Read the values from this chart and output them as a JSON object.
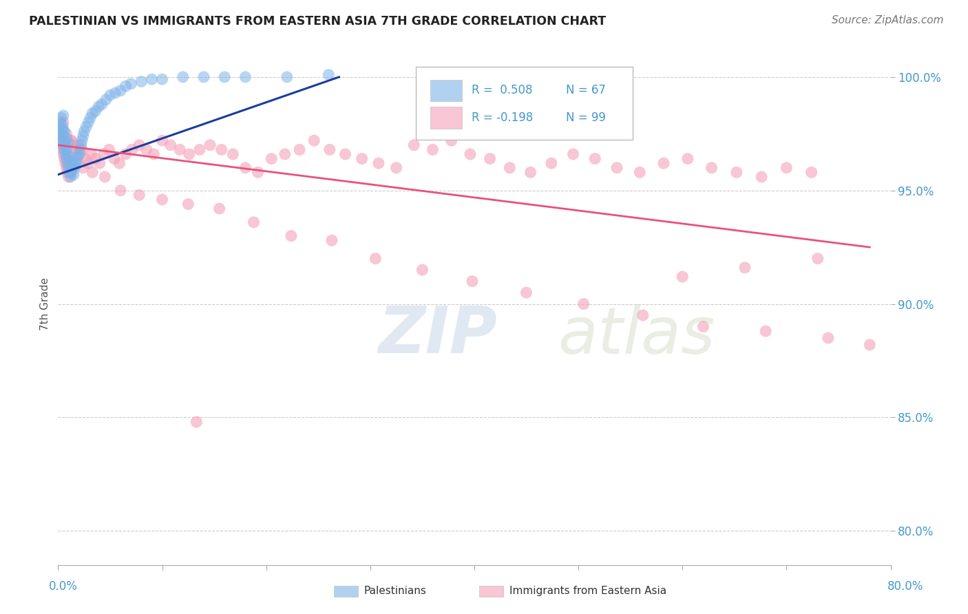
{
  "title": "PALESTINIAN VS IMMIGRANTS FROM EASTERN ASIA 7TH GRADE CORRELATION CHART",
  "source": "Source: ZipAtlas.com",
  "ylabel": "7th Grade",
  "y_tick_labels": [
    "80.0%",
    "85.0%",
    "90.0%",
    "95.0%",
    "100.0%"
  ],
  "y_tick_values": [
    0.8,
    0.85,
    0.9,
    0.95,
    1.0
  ],
  "xmin": 0.0,
  "xmax": 0.8,
  "ymin": 0.785,
  "ymax": 1.015,
  "legend_r_blue": "R = 0.508",
  "legend_n_blue": "N = 67",
  "legend_r_pink": "R = -0.198",
  "legend_n_pink": "N = 99",
  "blue_color": "#7EB3E8",
  "pink_color": "#F4A0B8",
  "blue_line_color": "#1A3D9E",
  "pink_line_color": "#E8527A",
  "watermark_zip": "ZIP",
  "watermark_atlas": "atlas",
  "blue_x": [
    0.001,
    0.002,
    0.002,
    0.003,
    0.003,
    0.003,
    0.004,
    0.004,
    0.004,
    0.005,
    0.005,
    0.005,
    0.005,
    0.006,
    0.006,
    0.006,
    0.007,
    0.007,
    0.008,
    0.008,
    0.008,
    0.009,
    0.009,
    0.01,
    0.01,
    0.01,
    0.011,
    0.011,
    0.012,
    0.012,
    0.013,
    0.013,
    0.014,
    0.015,
    0.015,
    0.016,
    0.017,
    0.018,
    0.019,
    0.02,
    0.021,
    0.022,
    0.023,
    0.024,
    0.025,
    0.027,
    0.029,
    0.031,
    0.033,
    0.036,
    0.039,
    0.042,
    0.046,
    0.05,
    0.055,
    0.06,
    0.065,
    0.07,
    0.08,
    0.09,
    0.1,
    0.12,
    0.14,
    0.16,
    0.18,
    0.22,
    0.26
  ],
  "blue_y": [
    0.975,
    0.978,
    0.98,
    0.974,
    0.977,
    0.982,
    0.972,
    0.975,
    0.979,
    0.97,
    0.973,
    0.977,
    0.983,
    0.968,
    0.971,
    0.976,
    0.966,
    0.97,
    0.964,
    0.968,
    0.973,
    0.962,
    0.966,
    0.96,
    0.965,
    0.971,
    0.958,
    0.963,
    0.956,
    0.961,
    0.958,
    0.963,
    0.96,
    0.957,
    0.962,
    0.96,
    0.962,
    0.963,
    0.965,
    0.966,
    0.968,
    0.97,
    0.972,
    0.974,
    0.976,
    0.978,
    0.98,
    0.982,
    0.984,
    0.985,
    0.987,
    0.988,
    0.99,
    0.992,
    0.993,
    0.994,
    0.996,
    0.997,
    0.998,
    0.999,
    0.999,
    1.0,
    1.0,
    1.0,
    1.0,
    1.0,
    1.001
  ],
  "pink_x": [
    0.001,
    0.002,
    0.003,
    0.004,
    0.005,
    0.006,
    0.007,
    0.008,
    0.009,
    0.01,
    0.011,
    0.012,
    0.013,
    0.015,
    0.017,
    0.019,
    0.021,
    0.023,
    0.026,
    0.029,
    0.032,
    0.036,
    0.04,
    0.044,
    0.049,
    0.054,
    0.059,
    0.065,
    0.071,
    0.078,
    0.085,
    0.092,
    0.1,
    0.108,
    0.117,
    0.126,
    0.136,
    0.146,
    0.157,
    0.168,
    0.18,
    0.192,
    0.205,
    0.218,
    0.232,
    0.246,
    0.261,
    0.276,
    0.292,
    0.308,
    0.325,
    0.342,
    0.36,
    0.378,
    0.396,
    0.415,
    0.434,
    0.454,
    0.474,
    0.495,
    0.516,
    0.537,
    0.559,
    0.582,
    0.605,
    0.628,
    0.652,
    0.676,
    0.7,
    0.724,
    0.005,
    0.008,
    0.012,
    0.017,
    0.024,
    0.033,
    0.045,
    0.06,
    0.078,
    0.1,
    0.125,
    0.155,
    0.188,
    0.224,
    0.263,
    0.305,
    0.35,
    0.398,
    0.45,
    0.505,
    0.562,
    0.62,
    0.68,
    0.74,
    0.78,
    0.73,
    0.66,
    0.6,
    0.133
  ],
  "pink_y": [
    0.975,
    0.972,
    0.97,
    0.968,
    0.966,
    0.964,
    0.962,
    0.96,
    0.958,
    0.956,
    0.96,
    0.958,
    0.972,
    0.97,
    0.968,
    0.97,
    0.966,
    0.968,
    0.964,
    0.962,
    0.966,
    0.964,
    0.962,
    0.966,
    0.968,
    0.964,
    0.962,
    0.966,
    0.968,
    0.97,
    0.968,
    0.966,
    0.972,
    0.97,
    0.968,
    0.966,
    0.968,
    0.97,
    0.968,
    0.966,
    0.96,
    0.958,
    0.964,
    0.966,
    0.968,
    0.972,
    0.968,
    0.966,
    0.964,
    0.962,
    0.96,
    0.97,
    0.968,
    0.972,
    0.966,
    0.964,
    0.96,
    0.958,
    0.962,
    0.966,
    0.964,
    0.96,
    0.958,
    0.962,
    0.964,
    0.96,
    0.958,
    0.956,
    0.96,
    0.958,
    0.98,
    0.975,
    0.972,
    0.968,
    0.96,
    0.958,
    0.956,
    0.95,
    0.948,
    0.946,
    0.944,
    0.942,
    0.936,
    0.93,
    0.928,
    0.92,
    0.915,
    0.91,
    0.905,
    0.9,
    0.895,
    0.89,
    0.888,
    0.885,
    0.882,
    0.92,
    0.916,
    0.912,
    0.848
  ]
}
